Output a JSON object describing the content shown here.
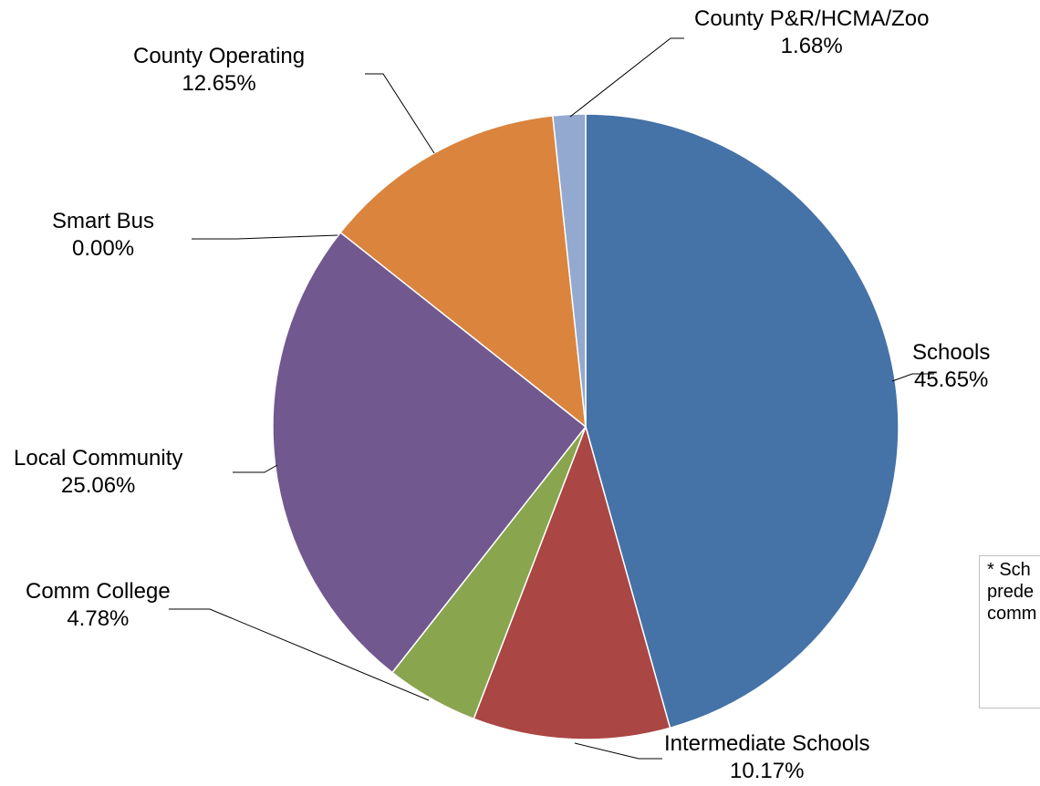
{
  "chart_data": {
    "type": "pie",
    "title": "",
    "slices": [
      {
        "label": "Schools",
        "value": 45.65,
        "value_text": "45.65%",
        "color": "#4572A7"
      },
      {
        "label": "Intermediate Schools",
        "value": 10.17,
        "value_text": "10.17%",
        "color": "#AA4643"
      },
      {
        "label": "Comm College",
        "value": 4.78,
        "value_text": "4.78%",
        "color": "#89A54E"
      },
      {
        "label": "Local Community",
        "value": 25.06,
        "value_text": "25.06%",
        "color": "#71588F"
      },
      {
        "label": "Smart Bus",
        "value": 0.0,
        "value_text": "0.00%",
        "color": "#4198AF"
      },
      {
        "label": "County Operating",
        "value": 12.65,
        "value_text": "12.65%",
        "color": "#DB843D"
      },
      {
        "label": "County P&R/HCMA/Zoo",
        "value": 1.68,
        "value_text": "1.68%",
        "color": "#93A9CF"
      }
    ],
    "start_angle": "12 o'clock",
    "direction": "clockwise",
    "legend": "none",
    "label_style": "outside with leader lines"
  },
  "note": {
    "lines": [
      "* Sch",
      "prede",
      "comm"
    ]
  }
}
